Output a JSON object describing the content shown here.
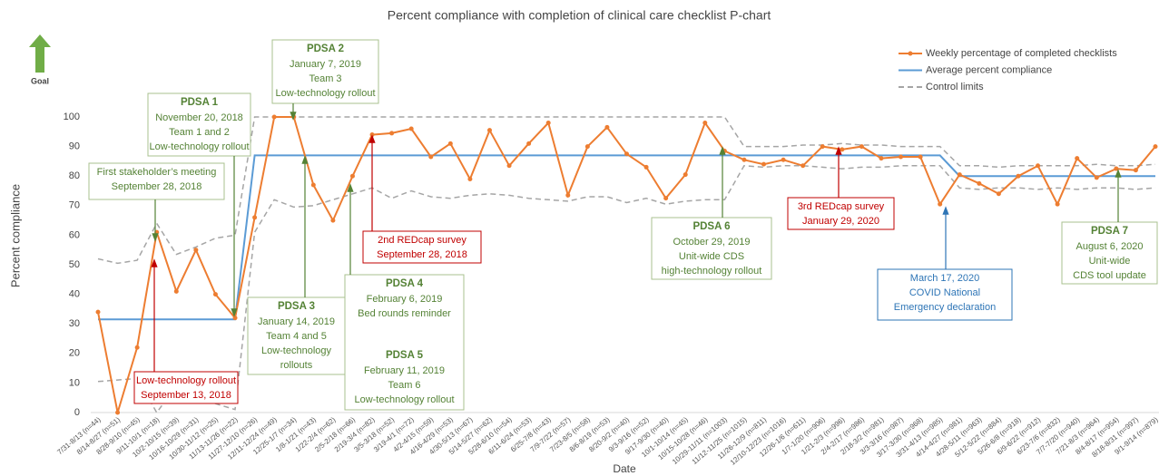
{
  "chart_data": {
    "type": "line",
    "title": "Percent compliance with completion of clinical care checklist P-chart",
    "x_label": "Date",
    "y_label": "Percent compliance",
    "goal_label": "Goal",
    "ylim": [
      0,
      100
    ],
    "yticks": [
      0,
      10,
      20,
      30,
      40,
      50,
      60,
      70,
      80,
      90,
      100
    ],
    "categories": [
      "7/31-8/13 (n=44)",
      "8/14-8/27 (n=51)",
      "8/28-9/10 (n=45)",
      "9/11-10/1 (n=18)",
      "10/2-10/15 (n=39)",
      "10/16-10/29 (n=31)",
      "10/30-11/12 (n=25)",
      "11/13-11/26 (n=22)",
      "11/27-12/10 (n=26)",
      "12/11-12/24 (n=49)",
      "12/25-1/7 (n=34)",
      "1/8-1/21 (n=43)",
      "1/22-2/4 (n=62)",
      "2/5-2/18 (n=66)",
      "2/19-3/4 (n=82)",
      "3/5-3/18 (n=52)",
      "3/19-4/1 (n=72)",
      "4/2-4/15 (n=59)",
      "4/16-4/29 (n=53)",
      "4/30-5/13 (n=67)",
      "5/14-5/27 (n=62)",
      "5/28-6/10 (n=54)",
      "6/11-6/24 (n=53)",
      "6/25-7/8 (n=43)",
      "7/9-7/22 (n=57)",
      "7/23-8/5 (n=58)",
      "8/6-8/19 (n=53)",
      "8/20-9/2 (n=40)",
      "9/3-9/16 (n=52)",
      "9/17-9/30 (n=40)",
      "10/1-10/14 (n=45)",
      "10/15-10/28 (n=46)",
      "10/29-11/11 (n=1003)",
      "11/12-11/25 (n=1015)",
      "11/26-12/9 (n=811)",
      "12/10-12/23 (n=1016)",
      "12/26-1/6 (n=611)",
      "1/7-1/20 (n=906)",
      "1/21-2/3 (n=996)",
      "2/4-2/17 (n=986)",
      "2/18-3/2 (n=981)",
      "3/3-3/16 (n=987)",
      "3/17-3/30 (n=968)",
      "3/31-4/13 (n=985)",
      "4/14-4/27 (n=981)",
      "4/28-5/11 (n=963)",
      "5/12-5/22 (n=884)",
      "5/26-6/8 (n=918)",
      "6/9-6/22 (n=912)",
      "6/23-7/6 (n=832)",
      "7/7-7/20 (n=940)",
      "7/21-8/3 (n=964)",
      "8/4-8/17 (n=954)",
      "8/18-8/31 (n=997)",
      "9/1-9/14 (n=879)"
    ],
    "series": [
      {
        "name": "Weekly percentage of completed checklists",
        "color": "#ed7d31",
        "markers": true,
        "values": [
          34,
          0,
          22,
          61,
          41,
          55,
          40,
          32,
          66,
          100,
          100,
          77,
          65,
          80,
          94,
          94.5,
          96,
          86.5,
          91,
          79,
          95.5,
          83.5,
          91,
          98,
          73.5,
          90,
          96.5,
          87.5,
          83,
          72.5,
          80.5,
          98,
          88.5,
          85.5,
          84,
          85.5,
          83.5,
          90,
          89,
          90,
          86,
          86.5,
          86.5,
          70.5,
          80.5,
          77.5,
          74,
          80,
          83.5,
          70.5,
          86,
          79.5,
          82.5,
          82,
          90
        ]
      },
      {
        "name": "Average percent compliance",
        "color": "#5b9bd5",
        "values": [
          31.5,
          31.5,
          31.5,
          31.5,
          31.5,
          31.5,
          31.5,
          31.5,
          87,
          87,
          87,
          87,
          87,
          87,
          87,
          87,
          87,
          87,
          87,
          87,
          87,
          87,
          87,
          87,
          87,
          87,
          87,
          87,
          87,
          87,
          87,
          87,
          87,
          87,
          87,
          87,
          87,
          87,
          87,
          87,
          87,
          87,
          87,
          87,
          80,
          80,
          80,
          80,
          80,
          80,
          80,
          80,
          80,
          80,
          80
        ]
      },
      {
        "name": "Control limits",
        "color": "#a5a5a5",
        "dashed": true,
        "values": [
          52,
          50.5,
          51.5,
          64,
          53.5,
          56,
          59,
          60,
          100,
          100,
          100,
          100,
          100,
          100,
          100,
          100,
          100,
          100,
          100,
          100,
          100,
          100,
          100,
          100,
          100,
          100,
          100,
          100,
          100,
          100,
          100,
          100,
          100,
          90,
          90,
          90,
          90.5,
          90.5,
          91,
          90.5,
          90.5,
          90,
          90,
          90,
          83.5,
          83.5,
          83,
          83.5,
          83.5,
          83.5,
          83.5,
          84,
          83.5,
          83.5,
          84
        ],
        "lower_values": [
          10.5,
          11,
          11.5,
          0,
          9,
          7,
          3,
          1,
          61,
          72,
          69.5,
          70,
          72,
          74,
          76,
          72.5,
          75,
          73,
          72.5,
          73.5,
          74,
          73.5,
          72.5,
          72,
          71.5,
          73,
          73,
          71,
          72.5,
          70.5,
          71.5,
          72,
          72,
          83.5,
          83,
          83.5,
          83.5,
          83,
          82.5,
          83,
          83,
          83.5,
          83.5,
          83.5,
          76,
          75.5,
          76,
          76,
          75.5,
          76,
          75.5,
          76,
          76,
          75.5,
          76
        ]
      }
    ],
    "annotations": [
      {
        "heading": "PDSA 1",
        "lines": [
          "November 20, 2018",
          "Team 1 and 2",
          "Low-technology rollout"
        ],
        "color": "#548235"
      },
      {
        "lines": [
          "First stakeholder’s meeting",
          "September 28, 2018"
        ],
        "color": "#548235"
      },
      {
        "heading": "PDSA 2",
        "lines": [
          "January 7, 2019",
          "Team 3",
          "Low-technology rollout"
        ],
        "color": "#548235"
      },
      {
        "heading": "PDSA 3",
        "lines": [
          "January 14, 2019",
          "Team 4 and 5",
          "Low-technology",
          "rollouts"
        ],
        "color": "#548235"
      },
      {
        "heading": "PDSA 4",
        "lines": [
          "February 6, 2019",
          "Bed rounds reminder"
        ],
        "color": "#548235"
      },
      {
        "heading": "PDSA 5",
        "lines": [
          "February 11, 2019",
          "Team 6",
          "Low-technology rollout"
        ],
        "color": "#548235"
      },
      {
        "lines": [
          "Low-technology rollout",
          "September 13, 2018"
        ],
        "color": "#c00000"
      },
      {
        "lines": [
          "2nd REDcap survey",
          "September 28, 2018"
        ],
        "color": "#c00000"
      },
      {
        "heading": "PDSA 6",
        "lines": [
          "October 29, 2019",
          "Unit-wide CDS",
          "high-technology rollout"
        ],
        "color": "#548235"
      },
      {
        "lines": [
          "3rd REDcap survey",
          "January 29, 2020"
        ],
        "color": "#c00000"
      },
      {
        "lines": [
          "March 17, 2020",
          "COVID National",
          "Emergency declaration"
        ],
        "color": "#2e75b6"
      },
      {
        "heading": "PDSA 7",
        "lines": [
          "August 6, 2020",
          "Unit-wide",
          "CDS tool update"
        ],
        "color": "#548235"
      }
    ]
  }
}
